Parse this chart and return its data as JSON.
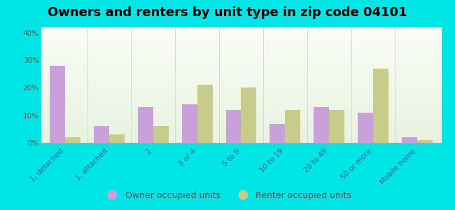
{
  "title": "Owners and renters by unit type in zip code 04101",
  "categories": [
    "1, detached",
    "1, attached",
    "2",
    "3 or 4",
    "5 to 9",
    "10 to 19",
    "20 to 49",
    "50 or more",
    "Mobile home"
  ],
  "owner_values": [
    28,
    6,
    13,
    14,
    12,
    7,
    13,
    11,
    2
  ],
  "renter_values": [
    2,
    3,
    6,
    21,
    20,
    12,
    12,
    27,
    1
  ],
  "owner_color": "#c9a0dc",
  "renter_color": "#c8cc8a",
  "background_color": "#00e5e5",
  "yticks": [
    0,
    10,
    20,
    30,
    40
  ],
  "ylim": [
    0,
    42
  ],
  "legend_owner": "Owner occupied units",
  "legend_renter": "Renter occupied units",
  "bar_width": 0.35,
  "title_fontsize": 13,
  "tick_fontsize": 7.5,
  "legend_fontsize": 9
}
